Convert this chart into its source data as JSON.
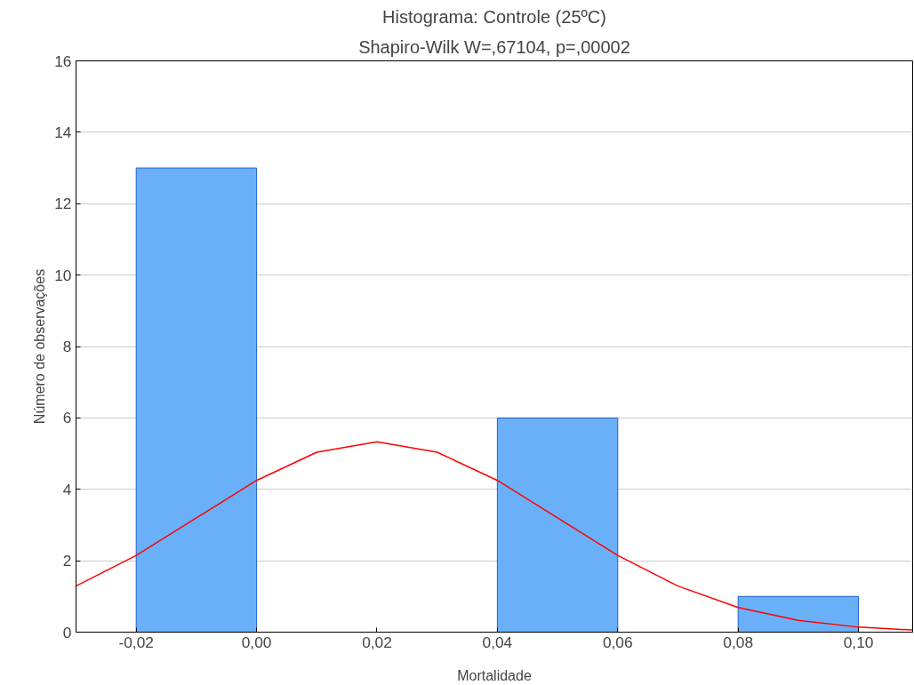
{
  "chart_data": {
    "type": "histogram",
    "title": "Histograma: Controle (25ºC)",
    "subtitle": "Shapiro-Wilk W=,67104, p=,00002",
    "xlabel": "Mortalidade",
    "ylabel": "Número de observações",
    "bins": [
      -0.02,
      0.0,
      0.02,
      0.04,
      0.06,
      0.08,
      0.1
    ],
    "values": [
      13,
      0,
      0,
      6,
      0,
      1
    ],
    "color": "#6ab0f8",
    "series": [
      {
        "type": "line",
        "color": "#ff0000",
        "x": [
          -0.03,
          -0.02,
          -0.01,
          0.0,
          0.01,
          0.02,
          0.03,
          0.04,
          0.05,
          0.06,
          0.07,
          0.08,
          0.09,
          0.1,
          0.109
        ],
        "values": [
          1.29,
          2.15,
          3.2,
          4.25,
          5.04,
          5.33,
          5.04,
          4.25,
          3.2,
          2.15,
          1.29,
          0.69,
          0.33,
          0.14,
          0.06
        ]
      }
    ],
    "xlim": [
      -0.03,
      0.109
    ],
    "xticks": [
      {
        "value": -0.02,
        "label": "-0,02"
      },
      {
        "value": 0.0,
        "label": "0,00"
      },
      {
        "value": 0.02,
        "label": "0,02"
      },
      {
        "value": 0.04,
        "label": "0,04"
      },
      {
        "value": 0.06,
        "label": "0,06"
      },
      {
        "value": 0.08,
        "label": "0,08"
      },
      {
        "value": 0.1,
        "label": "0,10"
      }
    ],
    "ylim": [
      0,
      16
    ],
    "yticks": [
      0,
      2,
      4,
      6,
      8,
      10,
      12,
      14,
      16
    ],
    "grid": "y"
  }
}
